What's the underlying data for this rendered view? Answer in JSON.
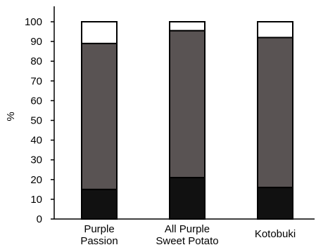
{
  "chart_data": {
    "type": "bar",
    "stacked": true,
    "title": "",
    "xlabel": "",
    "ylabel": "%",
    "ylim": [
      0,
      100
    ],
    "yticks": [
      0,
      10,
      20,
      30,
      40,
      50,
      60,
      70,
      80,
      90,
      100
    ],
    "categories": [
      [
        "Purple",
        "Passion"
      ],
      [
        "All Purple",
        "Sweet Potato"
      ],
      [
        "Kotobuki"
      ]
    ],
    "series": [
      {
        "values": [
          15,
          21,
          16
        ],
        "color": "#111111"
      },
      {
        "values": [
          74,
          74.5,
          76
        ],
        "color": "#595353"
      },
      {
        "values": [
          11,
          4.5,
          8
        ],
        "color": "#ffffff"
      }
    ],
    "grid": false,
    "legend": "none"
  }
}
